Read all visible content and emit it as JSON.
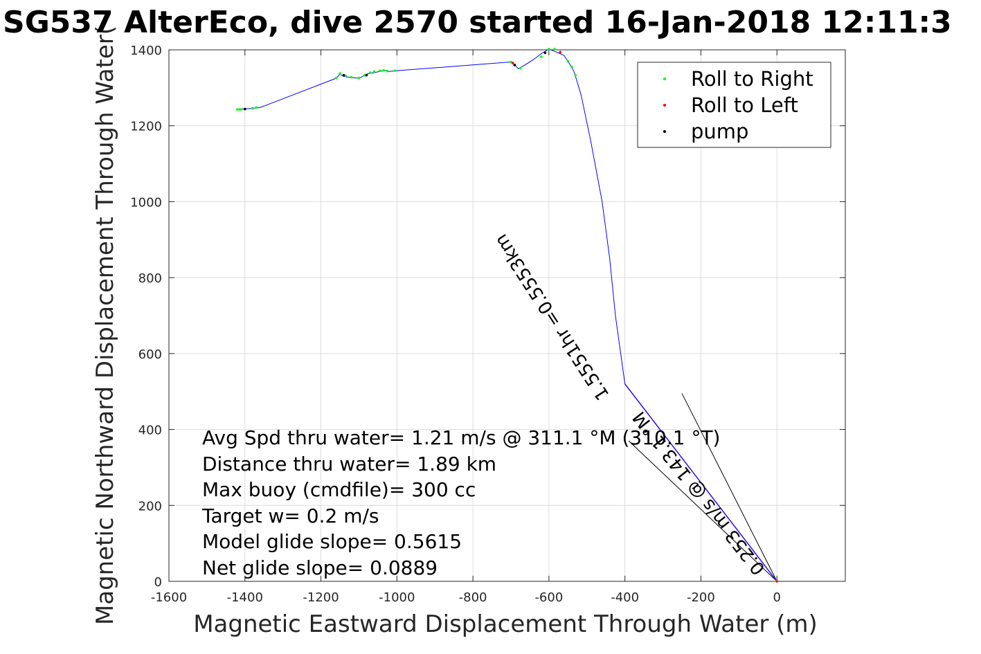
{
  "chart_data": {
    "type": "line",
    "title": "SG537 AlterEco, dive 2570 started 16-Jan-2018 12:11:3",
    "xlabel": "Magnetic Eastward Displacement Through Water (m)",
    "ylabel": "Magnetic Northward Displacement Through Water(",
    "xlim": [
      -1600,
      180
    ],
    "ylim": [
      0,
      1400
    ],
    "xticks": [
      -1600,
      -1400,
      -1200,
      -1000,
      -800,
      -600,
      -400,
      -200,
      0
    ],
    "xtick_labels": [
      "-1600",
      "-1400",
      "-1200",
      "-1000",
      "-800",
      "-600",
      "-400",
      "-200",
      "0"
    ],
    "yticks": [
      0,
      200,
      400,
      600,
      800,
      1000,
      1200,
      1400
    ],
    "ytick_labels": [
      "0",
      "200",
      "400",
      "600",
      "800",
      "1000",
      "1200",
      "1400"
    ],
    "grid": true,
    "legend_position": "top-right",
    "legend": [
      {
        "label": "Roll to Right",
        "color": "#00ff00"
      },
      {
        "label": "Roll to Left",
        "color": "#ff0000"
      },
      {
        "label": "pump",
        "color": "#000000"
      }
    ],
    "track": {
      "name": "track",
      "color": "#0000ff",
      "x": [
        0,
        -400,
        -425,
        -440,
        -460,
        -490,
        -515,
        -530,
        -535,
        -550,
        -560,
        -575,
        -590,
        -600,
        -620,
        -640,
        -660,
        -680,
        -690,
        -700,
        -1000,
        -1020,
        -1030,
        -1040,
        -1060,
        -1080,
        -1090,
        -1100,
        -1120,
        -1140,
        -1150,
        -1160,
        -1360,
        -1380,
        -1420,
        -1410
      ],
      "y": [
        0,
        520,
        700,
        850,
        1000,
        1160,
        1280,
        1330,
        1345,
        1370,
        1385,
        1392,
        1398,
        1402,
        1390,
        1375,
        1362,
        1350,
        1360,
        1368,
        1345,
        1343,
        1346,
        1344,
        1340,
        1336,
        1330,
        1325,
        1327,
        1330,
        1336,
        1325,
        1248,
        1246,
        1243,
        1243
      ]
    },
    "roll_right": {
      "x": [
        -1420,
        -1415,
        -1410,
        -1380,
        -1370,
        -1160,
        -1150,
        -1135,
        -1120,
        -1100,
        -1085,
        -1070,
        -1060,
        -1045,
        -1035,
        -1025,
        -1005,
        -700,
        -690,
        -675,
        -620,
        -600,
        -585,
        -550,
        -540,
        -530,
        -1
      ],
      "y": [
        1243,
        1243,
        1243,
        1246,
        1248,
        1326,
        1338,
        1332,
        1328,
        1326,
        1333,
        1340,
        1343,
        1345,
        1346,
        1344,
        1345,
        1368,
        1360,
        1352,
        1382,
        1402,
        1402,
        1370,
        1355,
        1333,
        1
      ]
    },
    "roll_left": {
      "x": [
        -695,
        -570,
        0
      ],
      "y": [
        1365,
        1394,
        0
      ]
    },
    "pump": {
      "x": [
        -1400,
        -1140,
        -1080,
        -690,
        -610
      ],
      "y": [
        1244,
        1333,
        1333,
        1360,
        1392
      ]
    },
    "current_line": {
      "color": "#8a2be2",
      "x": [
        0,
        -400
      ],
      "y": [
        0,
        520
      ]
    },
    "aux_lines": [
      {
        "x": [
          0,
          -390
        ],
        "y": [
          0,
          370
        ]
      },
      {
        "x": [
          0,
          -250
        ],
        "y": [
          0,
          495
        ]
      }
    ],
    "rotated_labels": [
      {
        "text": "0.5553km",
        "prefix": "=",
        "pre": "Hr"
      },
      {
        "text": "0.253 m/s @ 143.1 °M"
      }
    ],
    "annotations": [
      "Avg Spd thru water=  1.21 m/s @ 311.1  °M (310.1 °T)",
      "Distance thru water=  1.89 km",
      "Max buoy (cmdfile)= 300 cc",
      "Target w= 0.2 m/s",
      "Model glide slope= 0.5615",
      "Net glide slope= 0.0889"
    ],
    "diag_label_1": "1.5551hr =0.5553km",
    "diag_label_2": "0.253 m/s @ 143.1 °M"
  }
}
